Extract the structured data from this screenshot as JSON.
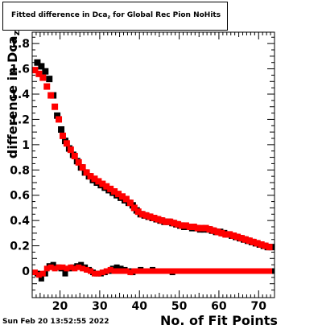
{
  "title": {
    "prefix": "Fitted difference in Dca",
    "subscript": "z",
    "suffix": " for Global Rec Pion NoHits"
  },
  "footer": {
    "date": "Sun Feb 20 13:52:55 2022"
  },
  "colors": {
    "series_black": "#000000",
    "series_red": "#ff0000",
    "frame": "#000000"
  },
  "chart_data": {
    "type": "scatter",
    "title": "Fitted difference in Dca_z for Global Rec Pion NoHits",
    "xlabel": "No. of Fit Points",
    "ylabel_prefix": "difference in Dca",
    "ylabel_subscript": "z",
    "xlim": [
      13,
      74
    ],
    "ylim": [
      -0.21,
      1.89
    ],
    "xticks": [
      20,
      30,
      40,
      50,
      60,
      70
    ],
    "xtick_labels": [
      "20",
      "30",
      "40",
      "50",
      "60",
      "70"
    ],
    "yticks": [
      0,
      0.2,
      0.4,
      0.6,
      0.8,
      1,
      1.2,
      1.4,
      1.6,
      1.8
    ],
    "ytick_labels": [
      "0",
      "0.2",
      "0.4",
      "0.6",
      "0.8",
      "1",
      "1.2",
      "1.4",
      "1.6",
      "1.8"
    ],
    "grid": false,
    "x": [
      14,
      15,
      16,
      17,
      18,
      19,
      20,
      21,
      22,
      23,
      24,
      25,
      26,
      27,
      28,
      29,
      30,
      31,
      32,
      33,
      34,
      35,
      36,
      37,
      38,
      39,
      40,
      41,
      42,
      43,
      44,
      45,
      46,
      47,
      48,
      49,
      50,
      51,
      52,
      53,
      54,
      55,
      56,
      57,
      58,
      59,
      60,
      61,
      62,
      63,
      64,
      65,
      66,
      67,
      68,
      69,
      70,
      71,
      72,
      73
    ],
    "series": [
      {
        "values": [
          1.65,
          1.62,
          1.58,
          1.52,
          1.39,
          1.23,
          1.12,
          1.03,
          0.97,
          0.92,
          0.87,
          0.82,
          0.78,
          0.75,
          0.72,
          0.7,
          0.68,
          0.66,
          0.64,
          0.62,
          0.6,
          0.58,
          0.56,
          0.54,
          0.52,
          0.48,
          0.45,
          0.44,
          0.43,
          0.42,
          0.41,
          0.4,
          0.39,
          0.39,
          0.38,
          0.37,
          0.36,
          0.35,
          0.35,
          0.34,
          0.34,
          0.33,
          0.33,
          0.33,
          0.32,
          0.31,
          0.31,
          0.3,
          0.29,
          0.28,
          0.27,
          0.26,
          0.25,
          0.24,
          0.23,
          0.22,
          0.21,
          0.2,
          0.19,
          0.19
        ]
      },
      {
        "values": [
          1.59,
          1.56,
          1.53,
          1.46,
          1.39,
          1.3,
          1.2,
          1.07,
          1.01,
          0.96,
          0.91,
          0.86,
          0.82,
          0.78,
          0.75,
          0.73,
          0.71,
          0.69,
          0.67,
          0.65,
          0.63,
          0.61,
          0.59,
          0.57,
          0.54,
          0.5,
          0.47,
          0.45,
          0.44,
          0.43,
          0.42,
          0.41,
          0.4,
          0.39,
          0.39,
          0.38,
          0.37,
          0.36,
          0.36,
          0.35,
          0.35,
          0.34,
          0.34,
          0.34,
          0.33,
          0.32,
          0.31,
          0.3,
          0.29,
          0.29,
          0.28,
          0.27,
          0.26,
          0.25,
          0.24,
          0.23,
          0.22,
          0.21,
          0.2,
          0.19
        ]
      },
      {
        "values": [
          -0.02,
          -0.06,
          -0.02,
          0.04,
          0.05,
          0.03,
          0.02,
          -0.02,
          0.02,
          0.03,
          0.04,
          0.05,
          0.03,
          0.01,
          -0.01,
          -0.02,
          -0.02,
          -0.01,
          0.0,
          0.02,
          0.03,
          0.02,
          0.01,
          0.0,
          -0.01,
          0.0,
          0.01,
          0.0,
          0.0,
          0.01,
          0.0,
          0.0,
          0.0,
          0.0,
          -0.01,
          0.0,
          0.0,
          0.0,
          0.0,
          0.0,
          0.0,
          0.0,
          0.0,
          0.0,
          0.0,
          0.0,
          0.0,
          0.0,
          0.0,
          0.0,
          0.0,
          0.0,
          0.0,
          0.0,
          0.0,
          0.0,
          0.0,
          0.0,
          0.0,
          0.0
        ]
      },
      {
        "values": [
          -0.01,
          -0.03,
          -0.02,
          0.02,
          0.03,
          0.02,
          0.03,
          0.03,
          0.02,
          0.03,
          0.02,
          0.03,
          0.02,
          0.01,
          0.0,
          -0.02,
          -0.02,
          -0.01,
          0.0,
          0.01,
          0.0,
          0.0,
          0.0,
          0.0,
          -0.01,
          0.0,
          0.0,
          0.0,
          0.0,
          0.0,
          0.0,
          0.0,
          0.0,
          0.0,
          0.0,
          0.0,
          0.0,
          0.0,
          0.0,
          0.0,
          0.0,
          0.0,
          0.0,
          0.0,
          0.0,
          0.0,
          0.0,
          0.0,
          0.0,
          0.0,
          0.0,
          0.0,
          0.0,
          0.0,
          0.0,
          0.0,
          0.0,
          0.0,
          0.0,
          0.0
        ]
      }
    ]
  }
}
